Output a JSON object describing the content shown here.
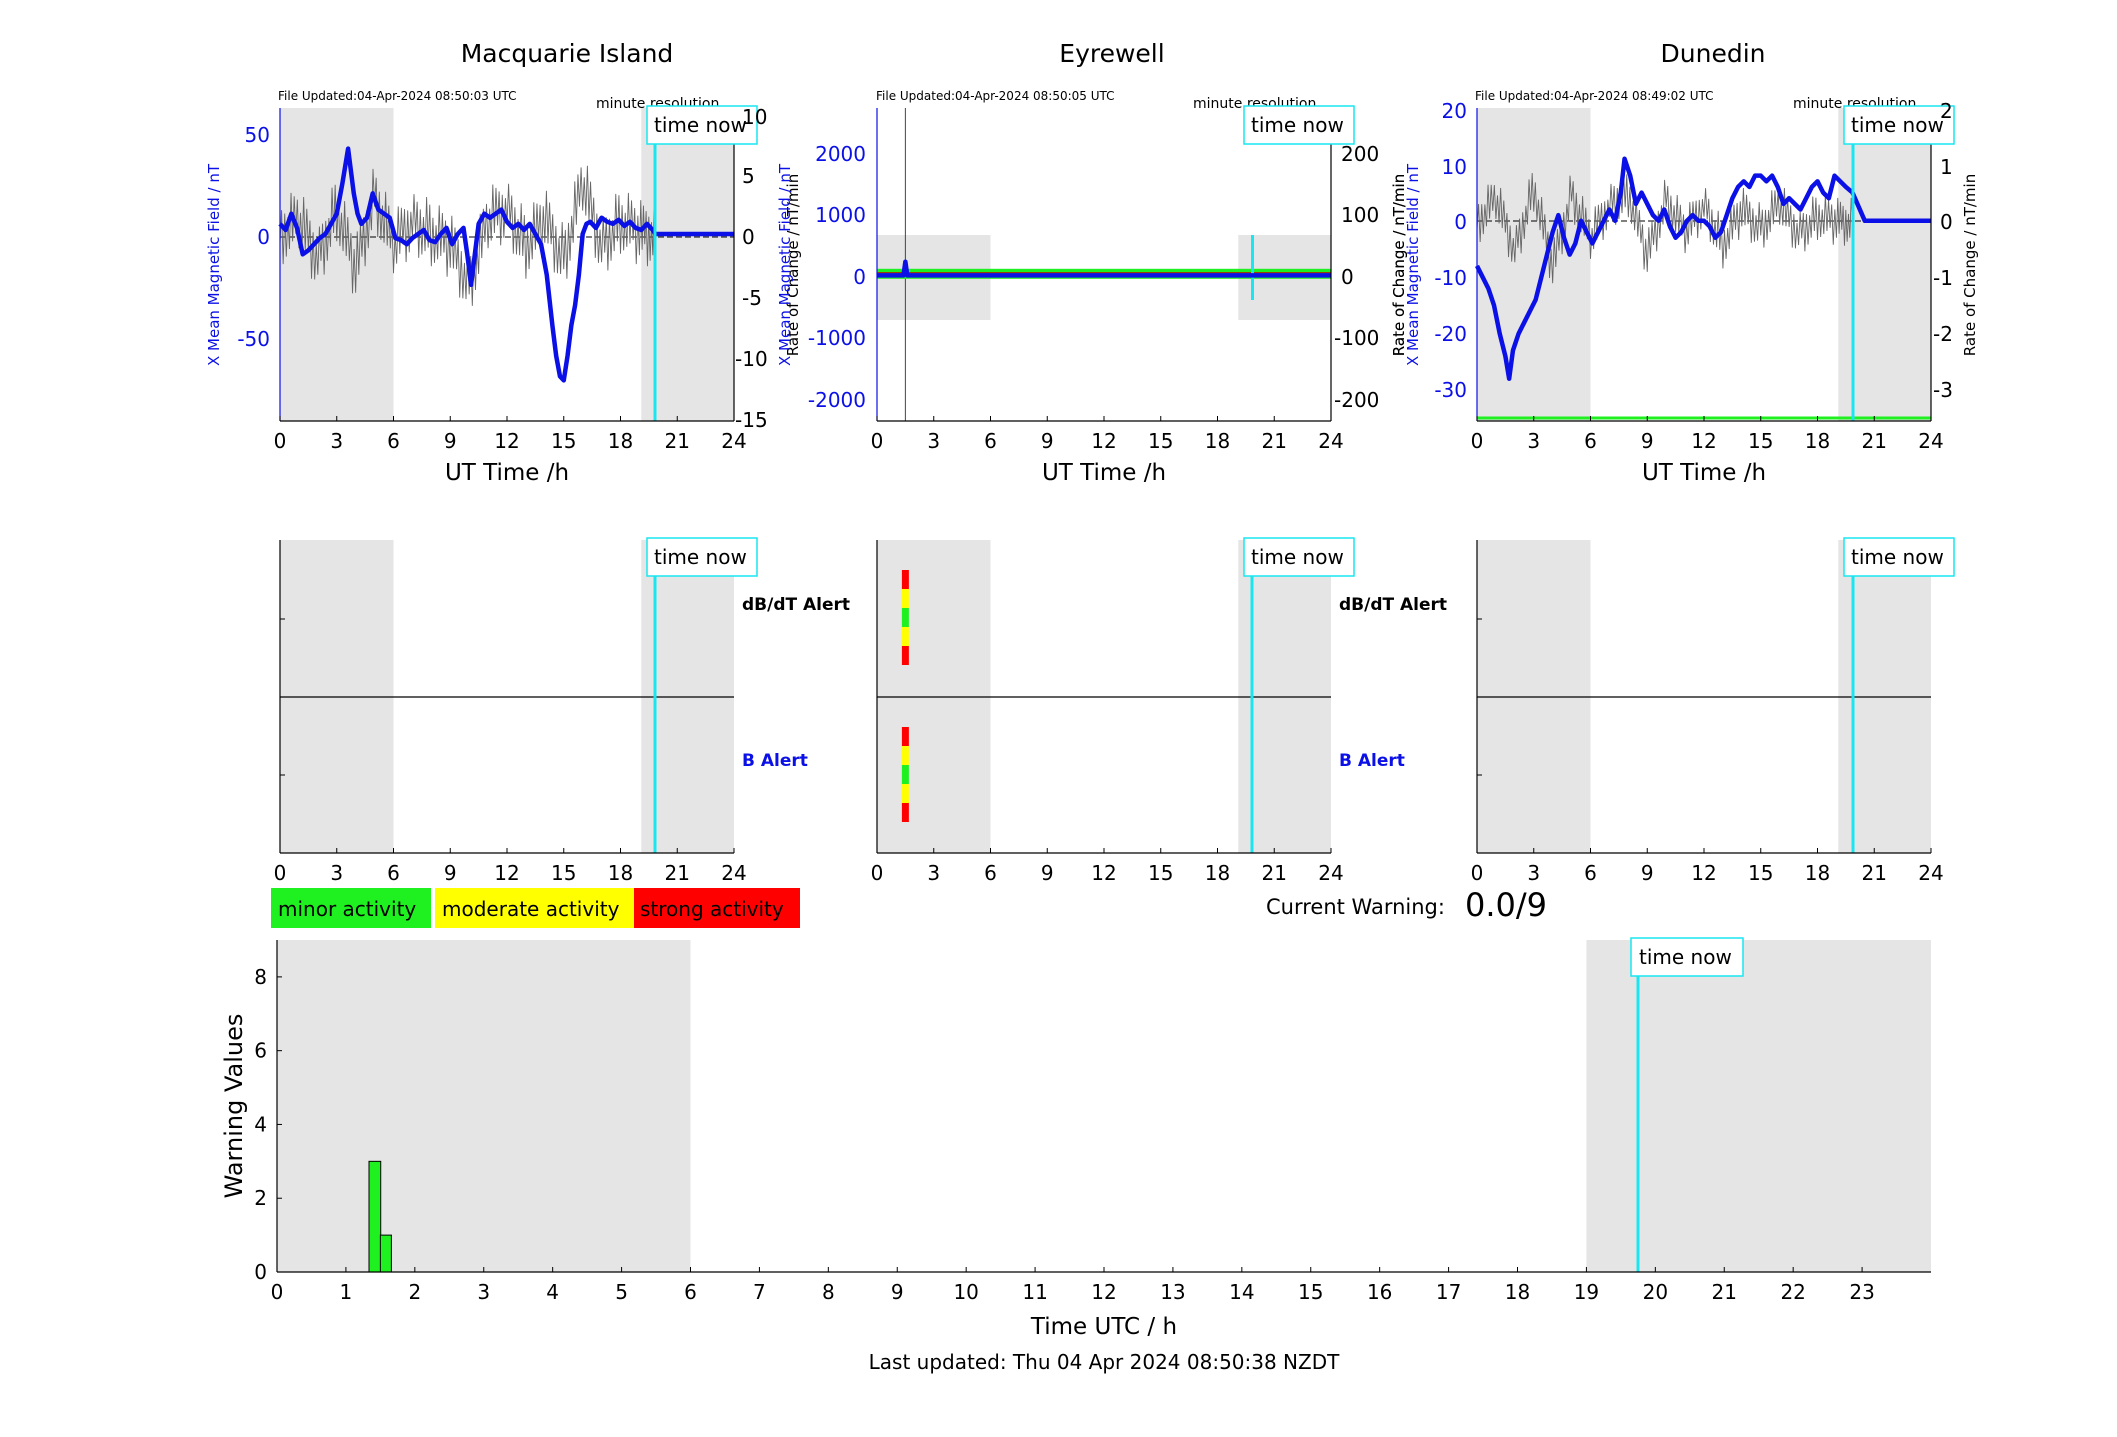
{
  "colors": {
    "shade": "#e5e5e5",
    "cyan": "#19e6f0",
    "blue": "#0b10e6",
    "green": "#1ff01f",
    "yellow": "#ffff00",
    "red": "#ff0000",
    "noise": "#666666"
  },
  "time_now_label": "time now",
  "minute_resolution_label": "minute resolution",
  "x_ticks_day": [
    "0",
    "3",
    "6",
    "9",
    "12",
    "15",
    "18",
    "21",
    "24"
  ],
  "stations": [
    {
      "name": "Macquarie Island",
      "file_updated": "File Updated:04-Apr-2024 08:50:03 UTC",
      "xlabel": "UT Time /h",
      "left_ylabel": "X Mean Magnetic Field / nT",
      "right_ylabel": "Rate of Change / nT/min",
      "left_ticks": [
        "50",
        "0",
        "-50"
      ],
      "right_ticks": [
        "10",
        "5",
        "0",
        "-5",
        "-10",
        "-15"
      ],
      "dbdt_alert_label": "dB/dT Alert",
      "b_alert_label": "B Alert"
    },
    {
      "name": "Eyrewell",
      "file_updated": "File Updated:04-Apr-2024 08:50:05 UTC",
      "xlabel": "UT Time /h",
      "left_ylabel": "X Mean Magnetic Field / nT",
      "right_ylabel": "Rate of Change / nT/min",
      "left_ticks": [
        "2000",
        "1000",
        "0",
        "-1000",
        "-2000"
      ],
      "right_ticks": [
        "200",
        "100",
        "0",
        "-100",
        "-200"
      ],
      "dbdt_alert_label": "dB/dT Alert",
      "b_alert_label": "B Alert"
    },
    {
      "name": "Dunedin",
      "file_updated": "File Updated:04-Apr-2024 08:49:02 UTC",
      "xlabel": "UT Time /h",
      "left_ylabel": "X Mean Magnetic Field / nT",
      "right_ylabel": "Rate of Change / nT/min",
      "left_ticks": [
        "20",
        "10",
        "0",
        "-10",
        "-20",
        "-30"
      ],
      "right_ticks": [
        "2",
        "1",
        "0",
        "-1",
        "-2",
        "-3"
      ]
    }
  ],
  "legend": {
    "minor": "minor activity",
    "moderate": "moderate activity",
    "strong": "strong activity"
  },
  "current_warning": {
    "label": "Current Warning:",
    "value": "0.0/9"
  },
  "footer": "Last updated: Thu 04 Apr 2024 08:50:38 NZDT",
  "chart_data": [
    {
      "id": "macquarie-field",
      "type": "line",
      "title": "Macquarie Island",
      "xlabel": "UT Time /h",
      "ylabel": "X Mean Magnetic Field / nT",
      "y2label": "Rate of Change / nT/min",
      "xlim": [
        0,
        24
      ],
      "ylim": [
        -92,
        62
      ],
      "y2lim": [
        -15,
        10
      ],
      "shaded_hours": [
        [
          0,
          6
        ],
        [
          19.1,
          24
        ]
      ],
      "time_now_hour": 19.85,
      "series": [
        {
          "role": "mean_field",
          "x": [
            0,
            0.3,
            0.6,
            0.9,
            1.2,
            1.5,
            1.8,
            2.1,
            2.4,
            2.7,
            3.0,
            3.3,
            3.6,
            3.9,
            4.1,
            4.3,
            4.6,
            4.9,
            5.2,
            5.5,
            5.8,
            6.1,
            6.4,
            6.7,
            7.0,
            7.3,
            7.6,
            7.9,
            8.2,
            8.5,
            8.8,
            9.1,
            9.4,
            9.7,
            9.9,
            10.1,
            10.3,
            10.5,
            10.8,
            11.1,
            11.4,
            11.7,
            12.0,
            12.3,
            12.6,
            12.9,
            13.2,
            13.5,
            13.8,
            14.1,
            14.4,
            14.6,
            14.8,
            15.0,
            15.2,
            15.4,
            15.6,
            15.8,
            16.0,
            16.2,
            16.4,
            16.7,
            17.0,
            17.3,
            17.6,
            17.9,
            18.2,
            18.5,
            18.8,
            19.1,
            19.4,
            19.7,
            19.85,
            20.5,
            24
          ],
          "y": [
            5,
            2,
            10,
            3,
            -10,
            -8,
            -5,
            -2,
            0,
            5,
            10,
            25,
            42,
            20,
            10,
            5,
            8,
            20,
            12,
            10,
            8,
            -2,
            -3,
            -5,
            -2,
            0,
            2,
            -3,
            -4,
            0,
            3,
            -5,
            0,
            3,
            -10,
            -25,
            -10,
            5,
            10,
            8,
            10,
            12,
            6,
            3,
            5,
            2,
            5,
            0,
            -5,
            -20,
            -45,
            -60,
            -70,
            -72,
            -60,
            -45,
            -35,
            -20,
            0,
            5,
            6,
            3,
            8,
            6,
            5,
            7,
            4,
            6,
            3,
            2,
            5,
            2,
            0,
            0,
            0
          ]
        },
        {
          "role": "rate_of_change",
          "x": [
            0,
            1,
            2,
            3,
            4,
            5,
            6,
            7,
            8,
            9,
            10,
            11,
            12,
            13,
            14,
            15,
            16,
            17,
            18,
            19,
            19.85
          ],
          "y": [
            0,
            1,
            -2,
            2,
            -3,
            3,
            -1,
            1,
            0,
            -1,
            -4,
            1,
            2,
            -1,
            1,
            -2,
            4,
            -1,
            1,
            0,
            0
          ]
        }
      ]
    },
    {
      "id": "eyrewell-field",
      "type": "line",
      "title": "Eyrewell",
      "xlabel": "UT Time /h",
      "ylabel": "X Mean Magnetic Field / nT",
      "y2label": "Rate of Change / nT/min",
      "xlim": [
        0,
        24
      ],
      "ylim": [
        -2350,
        2700
      ],
      "y2lim": [
        -235,
        270
      ],
      "shaded_hours": [
        [
          0,
          6
        ],
        [
          19.1,
          24
        ]
      ],
      "time_now_hour": 19.85,
      "series": [
        {
          "role": "mean_field",
          "x": [
            0,
            1.4,
            1.5,
            1.6,
            24
          ],
          "y": [
            0,
            0,
            220,
            0,
            0
          ]
        },
        {
          "role": "rate_of_change",
          "x": [
            0,
            1.5,
            1.5,
            1.5,
            24
          ],
          "y": [
            0,
            270,
            -235,
            0,
            0
          ]
        }
      ]
    },
    {
      "id": "dunedin-field",
      "type": "line",
      "title": "Dunedin",
      "xlabel": "UT Time /h",
      "ylabel": "X Mean Magnetic Field / nT",
      "y2label": "Rate of Change / nT/min",
      "xlim": [
        0,
        24
      ],
      "ylim": [
        -35.5,
        20
      ],
      "y2lim": [
        -3.5,
        2
      ],
      "shaded_hours": [
        [
          0,
          6
        ],
        [
          19.1,
          24
        ]
      ],
      "time_now_hour": 19.85,
      "series": [
        {
          "role": "mean_field",
          "x": [
            0,
            0.3,
            0.6,
            0.9,
            1.2,
            1.5,
            1.7,
            1.9,
            2.2,
            2.5,
            2.8,
            3.1,
            3.4,
            3.7,
            4.0,
            4.3,
            4.6,
            4.9,
            5.2,
            5.5,
            5.8,
            6.1,
            6.4,
            6.7,
            7.0,
            7.3,
            7.6,
            7.8,
            8.1,
            8.4,
            8.7,
            9.0,
            9.3,
            9.6,
            9.9,
            10.2,
            10.5,
            10.8,
            11.1,
            11.4,
            11.7,
            12.0,
            12.3,
            12.6,
            12.9,
            13.2,
            13.5,
            13.8,
            14.1,
            14.4,
            14.7,
            15.0,
            15.3,
            15.6,
            15.9,
            16.2,
            16.5,
            16.8,
            17.1,
            17.4,
            17.7,
            18.0,
            18.3,
            18.6,
            18.9,
            19.2,
            19.5,
            19.85,
            20.5,
            24
          ],
          "y": [
            -8,
            -10,
            -12,
            -15,
            -20,
            -24,
            -28,
            -23,
            -20,
            -18,
            -16,
            -14,
            -10,
            -6,
            -2,
            1,
            -3,
            -6,
            -4,
            0,
            -2,
            -4,
            -2,
            0,
            2,
            0,
            5,
            11,
            8,
            3,
            5,
            3,
            1,
            0,
            2,
            -1,
            -3,
            -2,
            0,
            1,
            0,
            0,
            -1,
            -3,
            -2,
            1,
            4,
            6,
            7,
            6,
            8,
            8,
            7,
            8,
            6,
            3,
            4,
            3,
            2,
            4,
            6,
            7,
            5,
            4,
            8,
            7,
            6,
            5,
            0,
            0
          ]
        },
        {
          "role": "rate_of_change",
          "x": [
            0,
            1,
            2,
            3,
            4,
            5,
            6,
            7,
            8,
            9,
            10,
            11,
            12,
            13,
            14,
            15,
            16,
            17,
            18,
            19,
            19.85
          ],
          "y": [
            0,
            0.4,
            -0.5,
            0.6,
            -0.8,
            0.5,
            -0.3,
            0.3,
            0.5,
            -0.6,
            0.4,
            -0.2,
            0.3,
            -0.4,
            0.2,
            -0.1,
            0.3,
            -0.2,
            0.1,
            0,
            0
          ]
        }
      ]
    },
    {
      "id": "macquarie-alerts",
      "type": "bar",
      "title": "Macquarie Island",
      "xlim": [
        0,
        24
      ],
      "shaded_hours": [
        [
          0,
          6
        ],
        [
          19.1,
          24
        ]
      ],
      "time_now_hour": 19.85,
      "dbdt_alert_bars": [],
      "b_alert_bars": []
    },
    {
      "id": "eyrewell-alerts",
      "type": "bar",
      "title": "Eyrewell",
      "xlim": [
        0,
        24
      ],
      "shaded_hours": [
        [
          0,
          6
        ],
        [
          19.1,
          24
        ]
      ],
      "time_now_hour": 19.85,
      "dbdt_alert_bars": [
        {
          "hour": 1.5,
          "levels": [
            "strong",
            "moderate",
            "minor",
            "moderate",
            "strong"
          ]
        }
      ],
      "b_alert_bars": [
        {
          "hour": 1.5,
          "levels": [
            "strong",
            "moderate",
            "minor",
            "moderate",
            "strong"
          ]
        }
      ]
    },
    {
      "id": "dunedin-alerts",
      "type": "bar",
      "title": "Dunedin",
      "xlim": [
        0,
        24
      ],
      "shaded_hours": [
        [
          0,
          6
        ],
        [
          19.1,
          24
        ]
      ],
      "time_now_hour": 19.85,
      "dbdt_alert_bars": [],
      "b_alert_bars": []
    },
    {
      "id": "warning-values",
      "type": "bar",
      "xlabel": "Time UTC / h",
      "ylabel": "Warning Values",
      "xlim": [
        0,
        24
      ],
      "ylim": [
        0,
        9
      ],
      "x_ticks": [
        "0",
        "1",
        "2",
        "3",
        "4",
        "5",
        "6",
        "7",
        "8",
        "9",
        "10",
        "11",
        "12",
        "13",
        "14",
        "15",
        "16",
        "17",
        "18",
        "19",
        "20",
        "21",
        "22",
        "23"
      ],
      "y_ticks": [
        "0",
        "2",
        "4",
        "6",
        "8"
      ],
      "shaded_hours": [
        [
          0,
          6
        ],
        [
          19,
          24
        ]
      ],
      "time_now_hour": 19.85,
      "bars": [
        {
          "hour": 1.42,
          "width": 0.17,
          "value": 3
        },
        {
          "hour": 1.58,
          "width": 0.16,
          "value": 1
        }
      ]
    }
  ]
}
